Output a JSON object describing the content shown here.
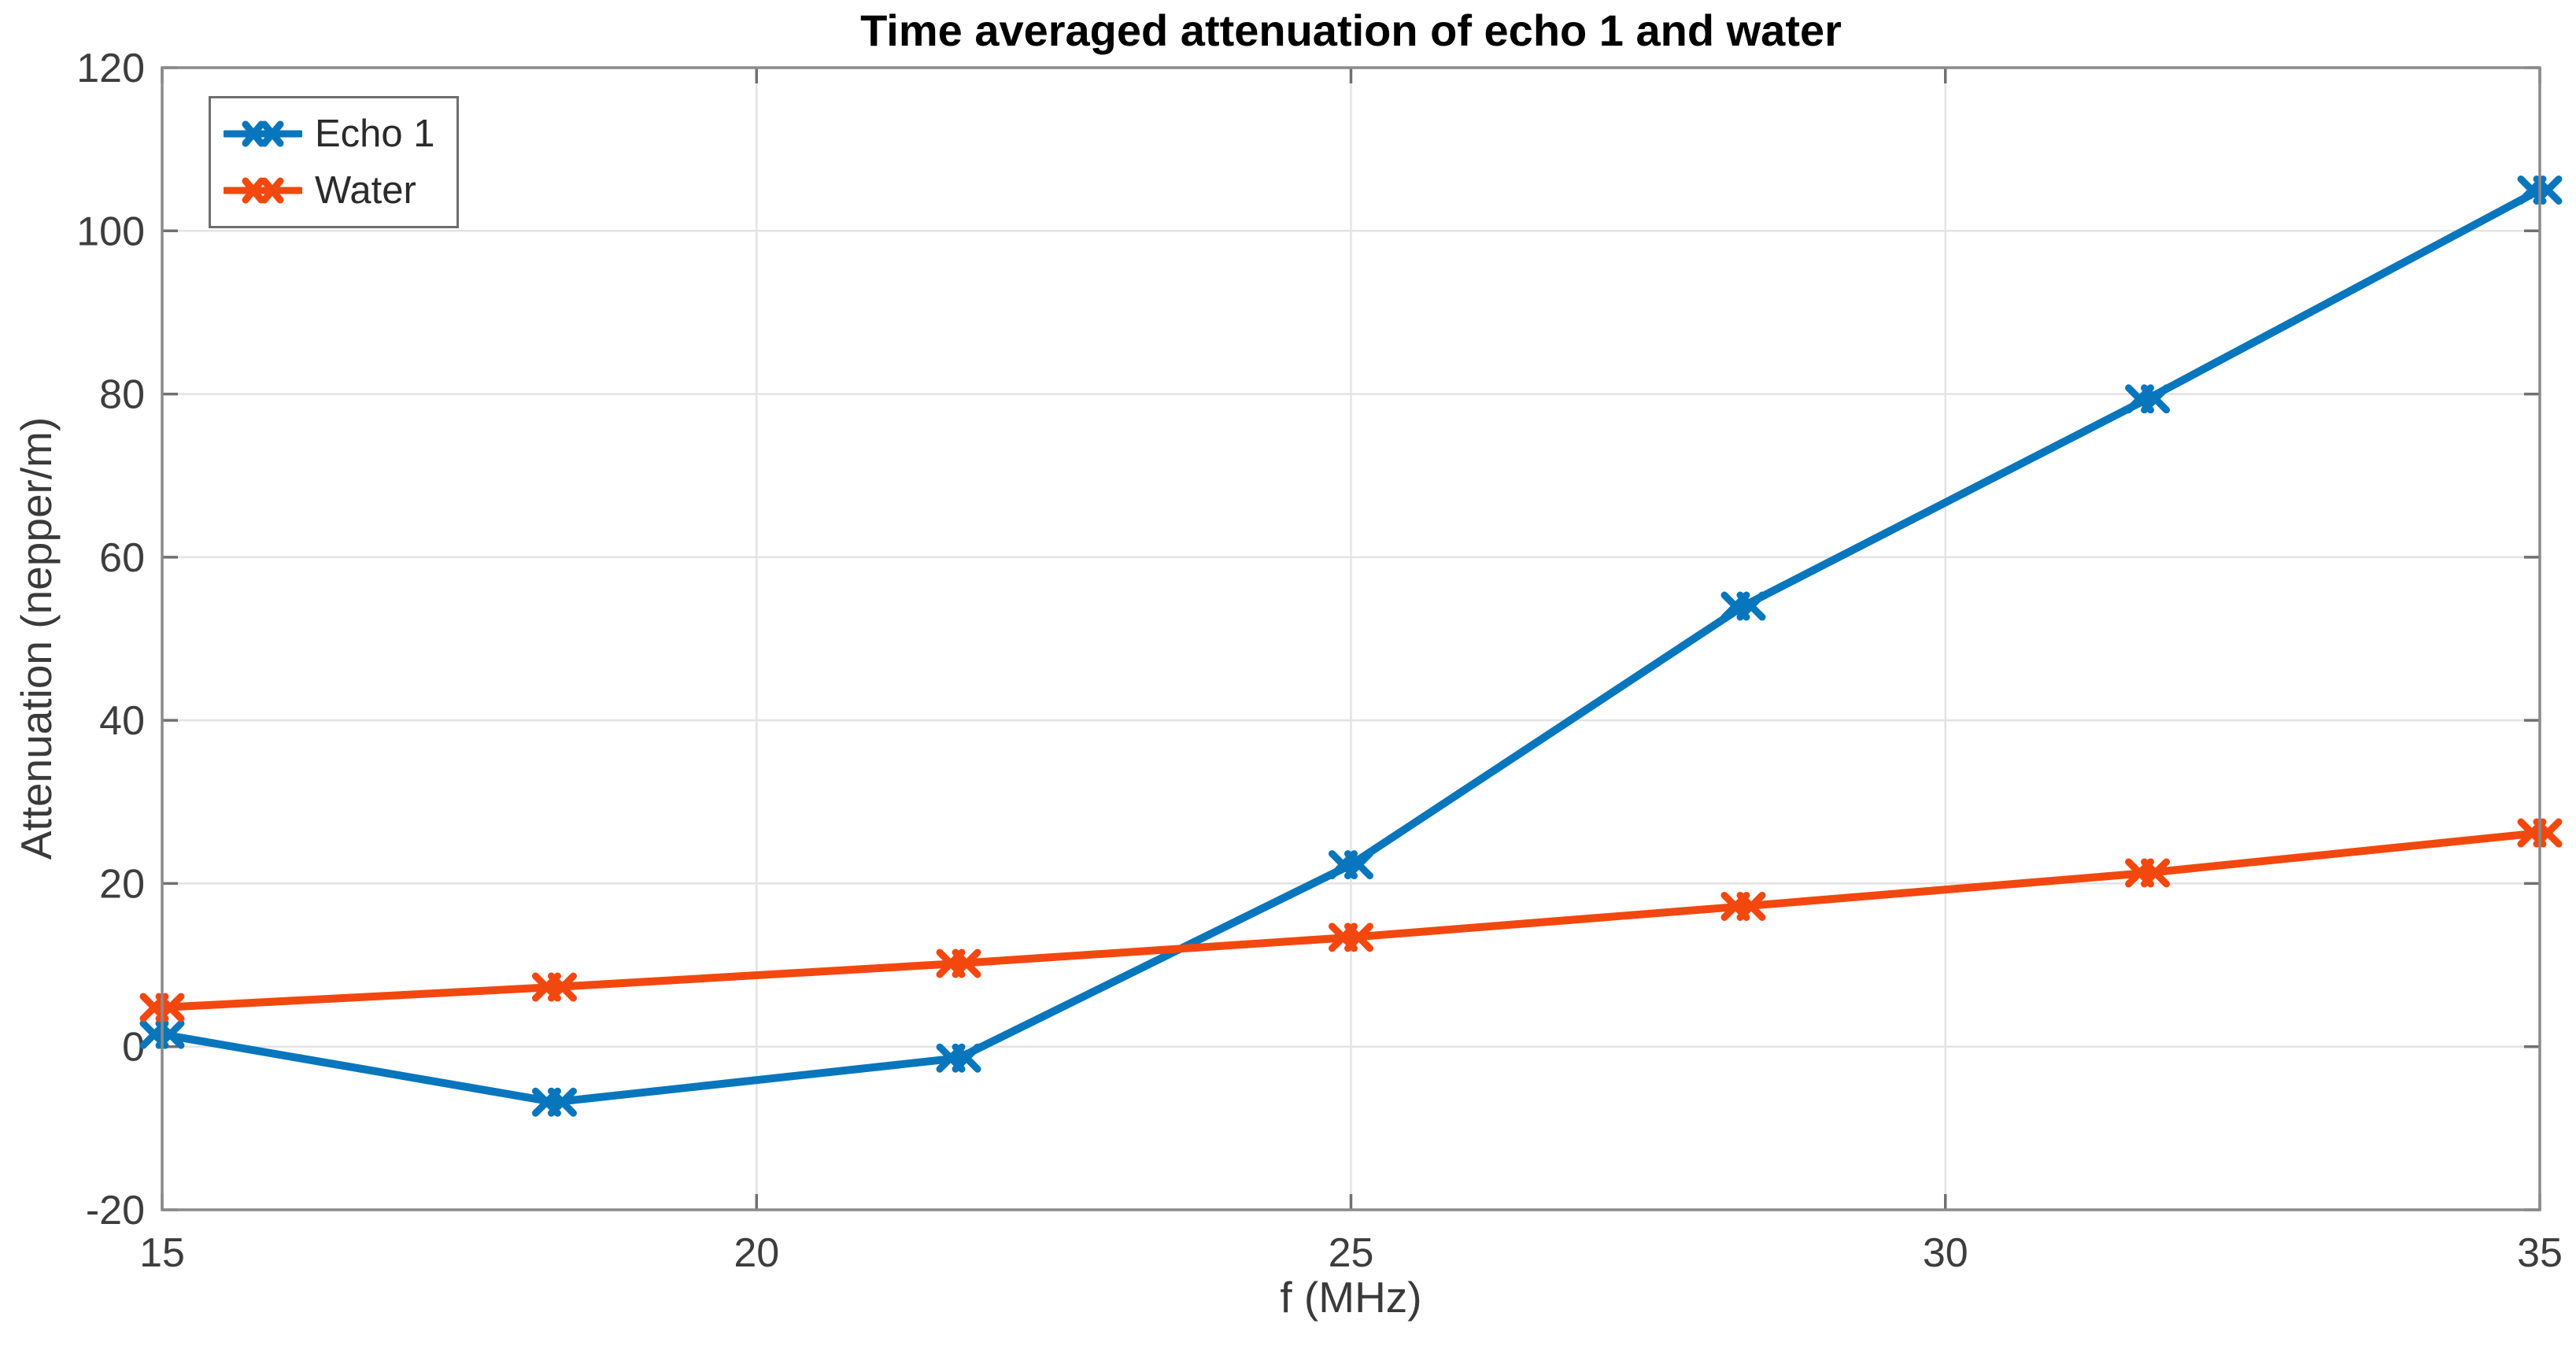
{
  "figure": {
    "title": "Time averaged attenuation of echo 1 and water",
    "background_color": "#ffffff",
    "frame_color": "#8a8a8a",
    "grid_color": "#e3e3e3",
    "tick_color": "#707070",
    "tick_label_color": "#3d3d3d"
  },
  "chart_data": {
    "type": "line",
    "title": "Time averaged attenuation of echo 1 and water",
    "xlabel": "f (MHz)",
    "ylabel": "Attenuation (nepper/m)",
    "xlim": [
      15,
      35
    ],
    "ylim": [
      -20,
      120
    ],
    "x_ticks": [
      15,
      20,
      25,
      30,
      35
    ],
    "x_tick_labels": [
      "15",
      "20",
      "25",
      "30",
      "35"
    ],
    "y_ticks": [
      -20,
      0,
      20,
      40,
      60,
      80,
      100,
      120
    ],
    "y_tick_labels": [
      "-20",
      "0",
      "20",
      "40",
      "60",
      "80",
      "100",
      "120"
    ],
    "grid": true,
    "legend_position": "top-left",
    "marker": "x",
    "x": [
      15,
      18.3,
      21.7,
      25,
      28.3,
      31.7,
      35
    ],
    "series": [
      {
        "name": "Echo 1",
        "color": "#0876bd",
        "values": [
          1.5,
          -6.8,
          -1.4,
          22.3,
          54.0,
          79.4,
          105.0
        ]
      },
      {
        "name": "Water",
        "color": "#f2480f",
        "values": [
          4.8,
          7.3,
          10.2,
          13.4,
          17.2,
          21.3,
          26.2
        ]
      }
    ]
  }
}
